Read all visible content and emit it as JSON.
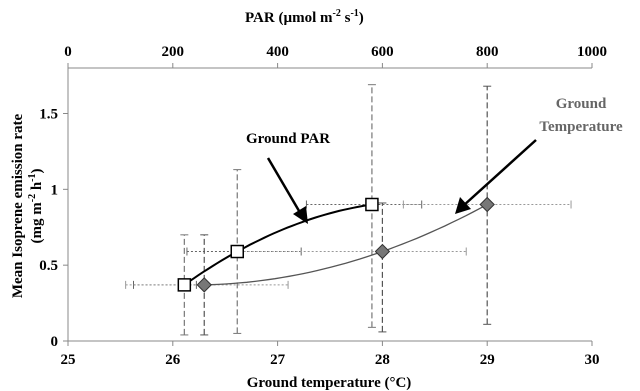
{
  "chart_data": {
    "type": "scatter",
    "top_axis": {
      "label": "PAR (µmol m",
      "label_sup1": "-2",
      "label_mid": " s",
      "label_sup2": "-1",
      "label_end": ")",
      "ticks": [
        "0",
        "200",
        "400",
        "600",
        "800",
        "1000"
      ],
      "range": [
        0,
        1000
      ]
    },
    "bottom_axis": {
      "label": "Ground temperature (°C)",
      "ticks": [
        "25",
        "26",
        "27",
        "28",
        "29",
        "30"
      ],
      "range": [
        25,
        30
      ]
    },
    "y_axis": {
      "label_line1": "Mean Isoprene emission rate",
      "label_line2_a": "(mg m",
      "label_line2_sup1": "-2",
      "label_line2_b": " h",
      "label_line2_sup2": "-1",
      "label_line2_c": ")",
      "ticks": [
        "0",
        "0.5",
        "1",
        "1.5"
      ],
      "tick_values": [
        0,
        0.5,
        1,
        1.5
      ],
      "range": [
        0,
        1.8
      ]
    },
    "series": [
      {
        "name": "Ground PAR",
        "axis": "top",
        "marker": "square",
        "x": [
          222,
          323,
          580
        ],
        "y": [
          0.37,
          0.59,
          0.9
        ],
        "x_err_low": [
          125,
          227,
          455
        ],
        "x_err_high": [
          245,
          445,
          675
        ],
        "y_err_low": [
          0.04,
          0.05,
          0.09
        ],
        "y_err_high": [
          0.7,
          1.13,
          1.69
        ],
        "color": "#000000"
      },
      {
        "name": "Ground Temperature",
        "axis": "bottom",
        "marker": "diamond",
        "x": [
          26.3,
          28.0,
          29.0
        ],
        "y": [
          0.37,
          0.59,
          0.9
        ],
        "x_err_low": [
          25.55,
          26.6,
          28.2
        ],
        "x_err_high": [
          27.1,
          28.8,
          29.8
        ],
        "y_err_low": [
          0.04,
          0.06,
          0.11
        ],
        "y_err_high": [
          0.7,
          0.91,
          1.68
        ],
        "color": "#555555",
        "marker_color": "#777777"
      }
    ],
    "annotations": [
      {
        "text": "Ground PAR",
        "color": "#000000"
      },
      {
        "text": "Ground",
        "text2": "Temperature",
        "color": "#666666"
      }
    ],
    "grid": false,
    "legend": "none"
  }
}
